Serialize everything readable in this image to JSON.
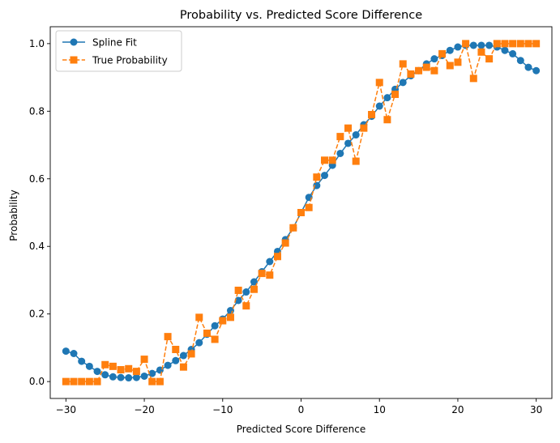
{
  "chart_data": {
    "type": "line",
    "title": "Probability vs. Predicted Score Difference",
    "xlabel": "Predicted Score Difference",
    "ylabel": "Probability",
    "xlim": [
      -32,
      32
    ],
    "ylim": [
      -0.05,
      1.05
    ],
    "xticks": [
      -30,
      -20,
      -10,
      0,
      10,
      20,
      30
    ],
    "yticks": [
      0.0,
      0.2,
      0.4,
      0.6,
      0.8,
      1.0
    ],
    "xtick_labels": [
      "−30",
      "−20",
      "−10",
      "0",
      "10",
      "20",
      "30"
    ],
    "ytick_labels": [
      "0.0",
      "0.2",
      "0.4",
      "0.6",
      "0.8",
      "1.0"
    ],
    "grid": false,
    "legend_position": "top-left",
    "series": [
      {
        "name": "Spline Fit",
        "color": "#1f77b4",
        "marker": "circle",
        "linestyle": "solid",
        "x": [
          -30,
          -29,
          -28,
          -27,
          -26,
          -25,
          -24,
          -23,
          -22,
          -21,
          -20,
          -19,
          -18,
          -17,
          -16,
          -15,
          -14,
          -13,
          -12,
          -11,
          -10,
          -9,
          -8,
          -7,
          -6,
          -5,
          -4,
          -3,
          -2,
          -1,
          0,
          1,
          2,
          3,
          4,
          5,
          6,
          7,
          8,
          9,
          10,
          11,
          12,
          13,
          14,
          15,
          16,
          17,
          18,
          19,
          20,
          21,
          22,
          23,
          24,
          25,
          26,
          27,
          28,
          29,
          30
        ],
        "y": [
          0.09,
          0.083,
          0.06,
          0.045,
          0.03,
          0.02,
          0.014,
          0.012,
          0.011,
          0.012,
          0.016,
          0.024,
          0.034,
          0.048,
          0.062,
          0.077,
          0.095,
          0.115,
          0.14,
          0.165,
          0.185,
          0.21,
          0.24,
          0.265,
          0.295,
          0.325,
          0.355,
          0.385,
          0.42,
          0.455,
          0.5,
          0.545,
          0.58,
          0.61,
          0.64,
          0.675,
          0.705,
          0.73,
          0.76,
          0.785,
          0.815,
          0.84,
          0.865,
          0.885,
          0.905,
          0.92,
          0.94,
          0.955,
          0.965,
          0.98,
          0.99,
          0.995,
          0.995,
          0.995,
          0.995,
          0.99,
          0.98,
          0.97,
          0.95,
          0.93,
          0.92
        ]
      },
      {
        "name": "True Probability",
        "color": "#ff7f0e",
        "marker": "square",
        "linestyle": "dashed",
        "x": [
          -30,
          -29,
          -28,
          -27,
          -26,
          -25,
          -24,
          -23,
          -22,
          -21,
          -20,
          -19,
          -18,
          -17,
          -16,
          -15,
          -14,
          -13,
          -12,
          -11,
          -10,
          -9,
          -8,
          -7,
          -6,
          -5,
          -4,
          -3,
          -2,
          -1,
          0,
          1,
          2,
          3,
          4,
          5,
          6,
          7,
          8,
          9,
          10,
          11,
          12,
          13,
          14,
          15,
          16,
          17,
          18,
          19,
          20,
          21,
          22,
          23,
          24,
          25,
          26,
          27,
          28,
          29,
          30
        ],
        "y": [
          0.0,
          0.0,
          0.0,
          0.0,
          0.0,
          0.05,
          0.045,
          0.035,
          0.038,
          0.03,
          0.066,
          0.0,
          0.0,
          0.133,
          0.095,
          0.043,
          0.082,
          0.19,
          0.143,
          0.125,
          0.18,
          0.19,
          0.27,
          0.224,
          0.273,
          0.32,
          0.315,
          0.37,
          0.41,
          0.455,
          0.5,
          0.515,
          0.605,
          0.655,
          0.655,
          0.725,
          0.75,
          0.652,
          0.75,
          0.79,
          0.885,
          0.775,
          0.85,
          0.94,
          0.91,
          0.92,
          0.93,
          0.92,
          0.97,
          0.935,
          0.945,
          1.0,
          0.897,
          0.975,
          0.955,
          1.0,
          1.0,
          1.0,
          1.0,
          1.0,
          1.0
        ]
      }
    ]
  }
}
